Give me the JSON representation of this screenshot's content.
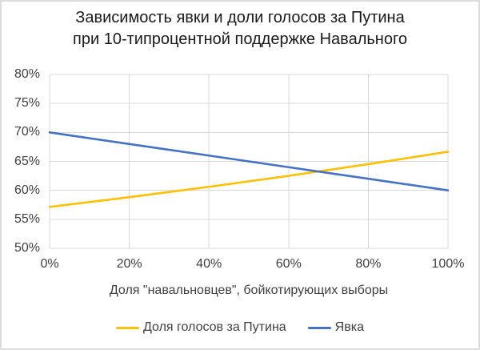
{
  "title": {
    "line1": "Зависимость явки и доли голосов за Путина",
    "line2": "при 10-типроцентной поддержке Навального"
  },
  "axes": {
    "xlabel": "Доля \"навальновцев\", бойкотирующих выборы"
  },
  "legend": {
    "items": [
      {
        "label": "Доля голосов за Путина",
        "color": "#FFC000"
      },
      {
        "label": "Явка",
        "color": "#4472C4"
      }
    ]
  },
  "colors": {
    "gridline": "#d9d9d9",
    "axis_text": "#404040",
    "title_text": "#1a1a1a",
    "frame_border": "#dcdcdc",
    "putin_share_line": "#FFC000",
    "turnout_line": "#4472C4"
  },
  "chart_data": {
    "type": "line",
    "title": "Зависимость явки и доли голосов за Путина при 10-типроцентной поддержке Навального",
    "xlabel": "Доля \"навальновцев\", бойкотирующих выборы",
    "ylabel": "",
    "x": [
      0,
      20,
      40,
      60,
      80,
      100
    ],
    "x_tick_labels": [
      "0%",
      "20%",
      "40%",
      "60%",
      "80%",
      "100%"
    ],
    "y_ticks": [
      50,
      55,
      60,
      65,
      70,
      75,
      80
    ],
    "y_tick_labels": [
      "50%",
      "55%",
      "60%",
      "65%",
      "70%",
      "75%",
      "80%"
    ],
    "xlim": [
      0,
      100
    ],
    "ylim": [
      50,
      80
    ],
    "grid": true,
    "legend_position": "bottom",
    "series": [
      {
        "name": "Доля голосов за Путина",
        "color": "#FFC000",
        "values": [
          57.14,
          58.82,
          60.61,
          62.5,
          64.52,
          66.67
        ]
      },
      {
        "name": "Явка",
        "color": "#4472C4",
        "values": [
          70,
          68,
          66,
          64,
          62,
          60
        ]
      }
    ]
  }
}
